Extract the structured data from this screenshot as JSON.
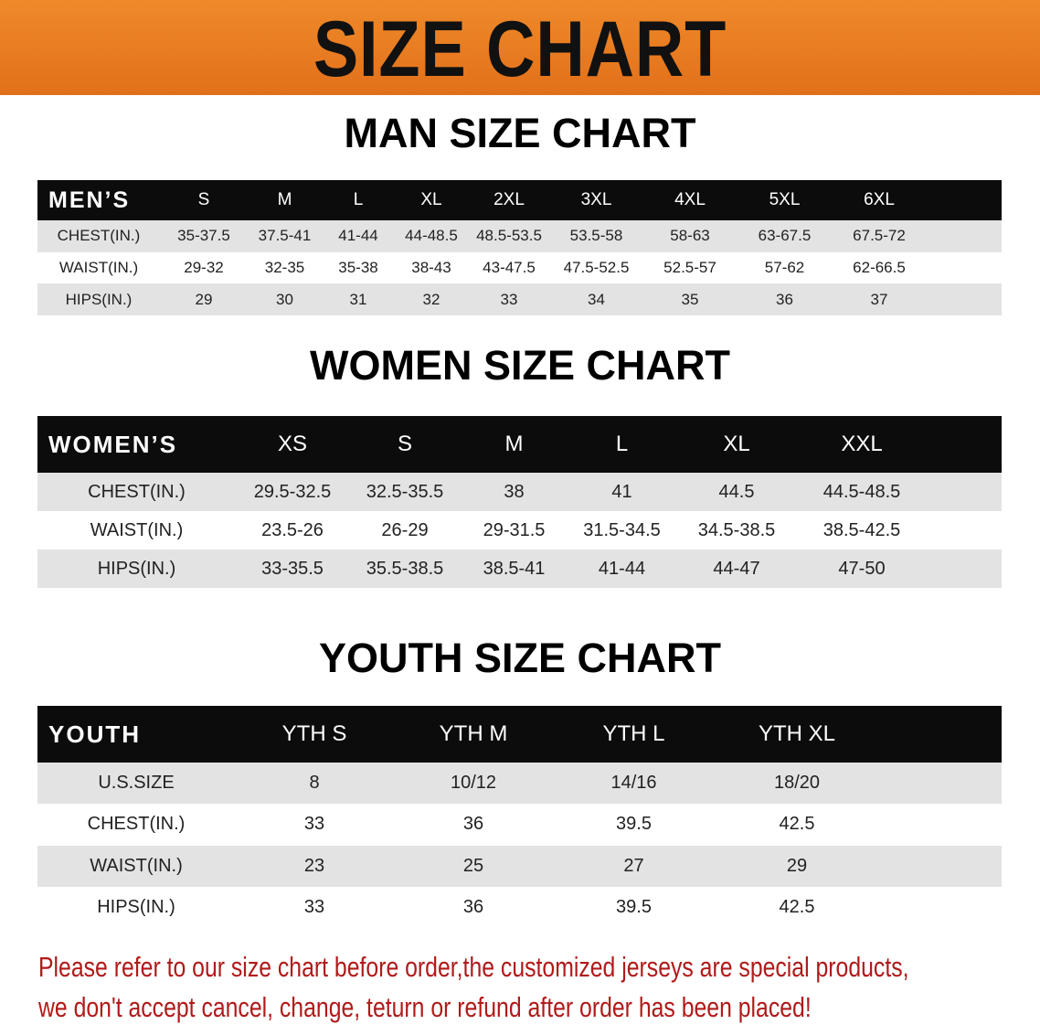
{
  "banner": {
    "title": "SIZE CHART",
    "color": "#e8761a"
  },
  "men": {
    "title": "MAN SIZE CHART",
    "header": [
      "MEN’S",
      "S",
      "M",
      "L",
      "XL",
      "2XL",
      "3XL",
      "4XL",
      "5XL",
      "6XL"
    ],
    "rows": [
      [
        "CHEST(IN.)",
        "35-37.5",
        "37.5-41",
        "41-44",
        "44-48.5",
        "48.5-53.5",
        "53.5-58",
        "58-63",
        "63-67.5",
        "67.5-72"
      ],
      [
        "WAIST(IN.)",
        "29-32",
        "32-35",
        "35-38",
        "38-43",
        "43-47.5",
        "47.5-52.5",
        "52.5-57",
        "57-62",
        "62-66.5"
      ],
      [
        "HIPS(IN.)",
        "29",
        "30",
        "31",
        "32",
        "33",
        "34",
        "35",
        "36",
        "37"
      ]
    ]
  },
  "women": {
    "title": "WOMEN SIZE CHART",
    "header": [
      "WOMEN’S",
      "XS",
      "S",
      "M",
      "L",
      "XL",
      "XXL"
    ],
    "rows": [
      [
        "CHEST(IN.)",
        "29.5-32.5",
        "32.5-35.5",
        "38",
        "41",
        "44.5",
        "44.5-48.5"
      ],
      [
        "WAIST(IN.)",
        "23.5-26",
        "26-29",
        "29-31.5",
        "31.5-34.5",
        "34.5-38.5",
        "38.5-42.5"
      ],
      [
        "HIPS(IN.)",
        "33-35.5",
        "35.5-38.5",
        "38.5-41",
        "41-44",
        "44-47",
        "47-50"
      ]
    ]
  },
  "youth": {
    "title": "YOUTH SIZE CHART",
    "header": [
      "YOUTH",
      "YTH S",
      "YTH M",
      "YTH L",
      "YTH XL"
    ],
    "rows": [
      [
        "U.S.SIZE",
        "8",
        "10/12",
        "14/16",
        "18/20"
      ],
      [
        "CHEST(IN.)",
        "33",
        "36",
        "39.5",
        "42.5"
      ],
      [
        "WAIST(IN.)",
        "23",
        "25",
        "27",
        "29"
      ],
      [
        "HIPS(IN.)",
        "33",
        "36",
        "39.5",
        "42.5"
      ]
    ]
  },
  "note": {
    "line1": "Please refer to our size chart before order,the customized jerseys are special products,",
    "line2": "we don't accept cancel, change, teturn or refund after order has been placed!",
    "color": "#b01a1a"
  }
}
